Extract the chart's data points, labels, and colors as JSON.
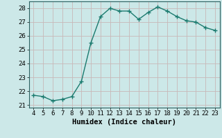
{
  "x": [
    4,
    5,
    6,
    7,
    8,
    9,
    10,
    11,
    12,
    13,
    14,
    15,
    16,
    17,
    18,
    19,
    20,
    21,
    22,
    23
  ],
  "y": [
    21.7,
    21.6,
    21.3,
    21.4,
    21.6,
    22.7,
    25.5,
    27.4,
    28.0,
    27.8,
    27.8,
    27.2,
    27.7,
    28.1,
    27.8,
    27.4,
    27.1,
    27.0,
    26.6,
    26.4
  ],
  "line_color": "#1a7a6e",
  "marker": "+",
  "bg_color": "#cce8e8",
  "grid_color": "#c8b8b8",
  "xlabel": "Humidex (Indice chaleur)",
  "xlim": [
    3.5,
    23.5
  ],
  "ylim": [
    20.8,
    28.5
  ],
  "yticks": [
    21,
    22,
    23,
    24,
    25,
    26,
    27,
    28
  ],
  "xticks": [
    4,
    5,
    6,
    7,
    8,
    9,
    10,
    11,
    12,
    13,
    14,
    15,
    16,
    17,
    18,
    19,
    20,
    21,
    22,
    23
  ],
  "xlabel_fontsize": 7.5,
  "tick_fontsize": 6.5,
  "linewidth": 1.0,
  "markersize": 4
}
